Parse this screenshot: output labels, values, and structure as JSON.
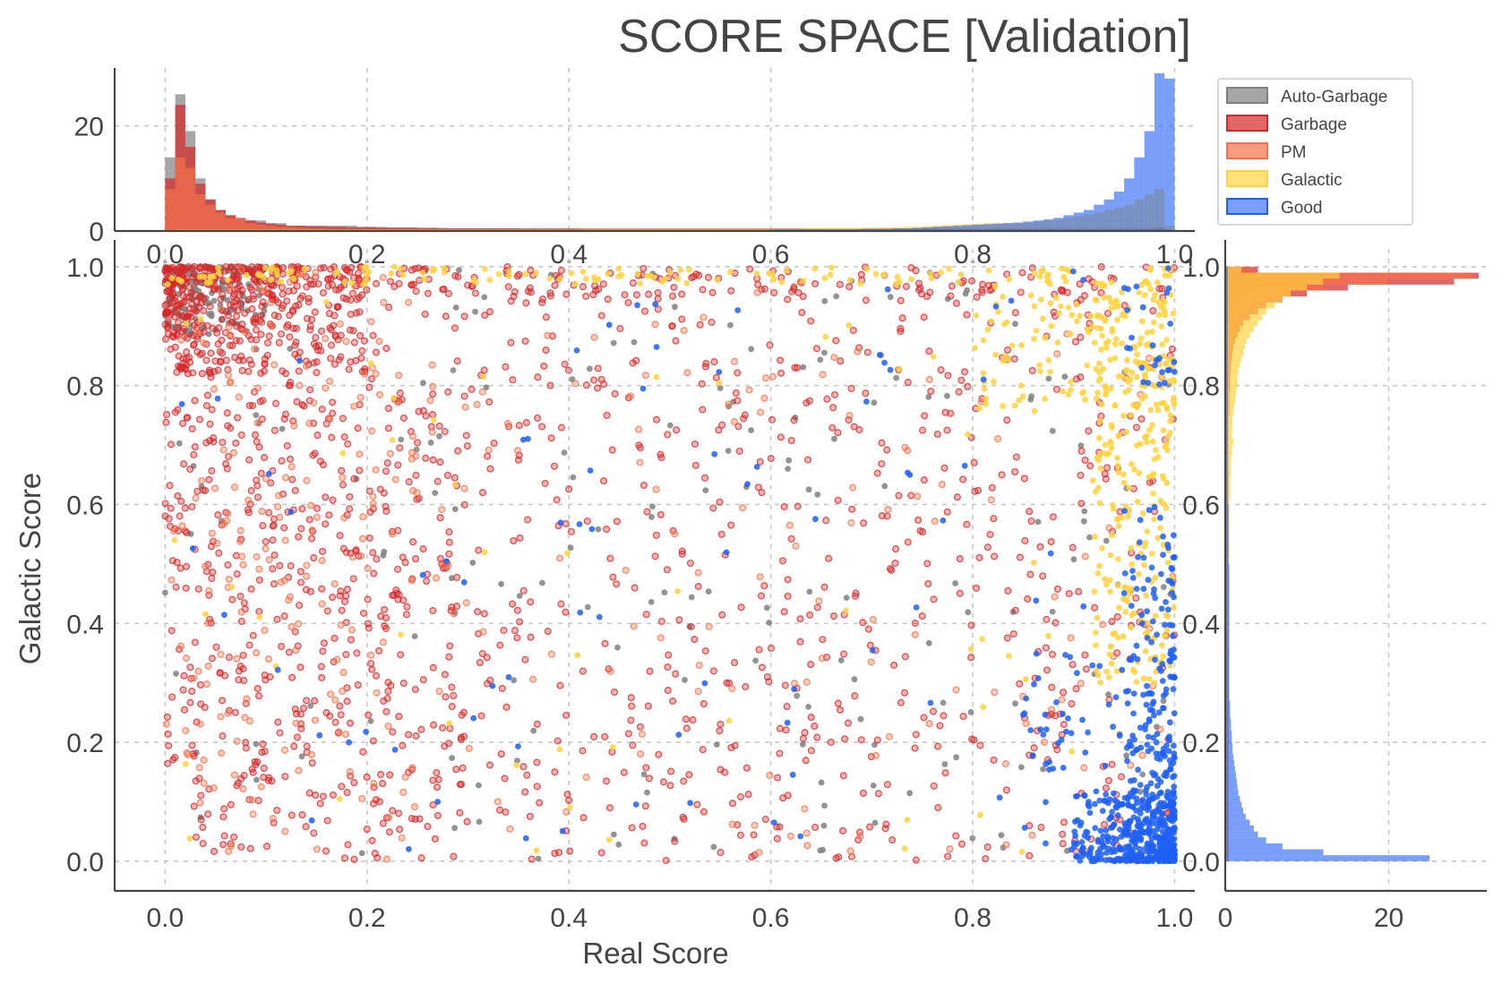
{
  "chart_data": {
    "type": "scatter",
    "title": "SCORE SPACE [Validation]",
    "xlabel": "Real Score",
    "ylabel": "Galactic Score",
    "xlim": [
      -0.05,
      1.02
    ],
    "ylim": [
      -0.05,
      1.03
    ],
    "x_ticks": [
      "0.0",
      "0.2",
      "0.4",
      "0.6",
      "0.8",
      "1.0"
    ],
    "y_ticks": [
      "0.0",
      "0.2",
      "0.4",
      "0.6",
      "0.8",
      "1.0"
    ],
    "top_hist_ticks": [
      "0",
      "20"
    ],
    "right_hist_ticks": [
      "0",
      "20"
    ],
    "top_hist_ylim": [
      0,
      31
    ],
    "right_hist_xlim": [
      0,
      32
    ],
    "grid": true,
    "legend_position": "top-right",
    "series": [
      {
        "name": "Auto-Garbage",
        "color": "#808080",
        "alpha": 0.7,
        "hist_real": [
          14,
          26,
          19,
          10,
          6,
          4,
          3,
          2,
          2,
          2,
          1.5,
          1.5,
          1,
          1,
          1,
          1,
          1,
          1,
          1,
          0.8,
          0.8,
          0.8,
          0.7,
          0.7,
          0.7,
          0.6,
          0.6,
          0.6,
          0.5,
          0.5,
          0.5,
          0.5,
          0.5,
          0.5,
          0.5,
          0.4,
          0.4,
          0.4,
          0.4,
          0.4,
          0.4,
          0.4,
          0.3,
          0.3,
          0.3,
          0.3,
          0.3,
          0.3,
          0.3,
          0.3,
          0.3,
          0.3,
          0.3,
          0.3,
          0.3,
          0.3,
          0.3,
          0.3,
          0.3,
          0.3,
          0.3,
          0.3,
          0.3,
          0.3,
          0.3,
          0.3,
          0.3,
          0.3,
          0.3,
          0.3,
          0.3,
          0.3,
          0.3,
          0.3,
          0.3,
          0.3,
          0.3,
          0.3,
          0.3,
          0.3,
          0.3,
          0.3,
          0.3,
          0.3,
          0.3,
          0.3,
          0.3,
          0.3,
          0.3,
          0.3,
          0.3,
          0.3,
          0.3,
          0.3,
          0.3,
          0.3,
          0.3,
          0.4,
          0.8,
          0.2
        ],
        "hist_galactic": [
          0.2,
          0.2,
          0.2,
          0.2,
          0.2,
          0.2,
          0.2,
          0.2,
          0.2,
          0.2,
          0.2,
          0.2,
          0.2,
          0.2,
          0.2,
          0.2,
          0.2,
          0.2,
          0.2,
          0.2,
          0.2,
          0.2,
          0.2,
          0.2,
          0.2,
          0.2,
          0.2,
          0.2,
          0.2,
          0.2,
          0.2,
          0.2,
          0.2,
          0.2,
          0.2,
          0.2,
          0.2,
          0.2,
          0.2,
          0.2,
          0.2,
          0.2,
          0.2,
          0.2,
          0.2,
          0.2,
          0.2,
          0.2,
          0.2,
          0.2,
          0.2,
          0.2,
          0.2,
          0.2,
          0.2,
          0.2,
          0.2,
          0.2,
          0.2,
          0.2,
          0.2,
          0.2,
          0.2,
          0.2,
          0.2,
          0.2,
          0.2,
          0.2,
          0.2,
          0.2,
          0.2,
          0.2,
          0.2,
          0.2,
          0.2,
          0.2,
          0.2,
          0.2,
          0.2,
          0.2,
          0.2,
          0.3,
          0.3,
          0.3,
          0.3,
          0.3,
          0.3,
          0.3,
          0.4,
          0.4,
          0.5,
          0.6,
          0.8,
          1.0,
          1.5,
          2.5,
          4,
          10,
          14,
          3
        ]
      },
      {
        "name": "Garbage",
        "color": "#d62728",
        "alpha": 0.7,
        "hist_real": [
          10,
          24,
          16,
          9,
          6,
          4,
          3,
          2.5,
          2,
          1.6,
          1.4,
          1.2,
          1,
          1,
          0.9,
          0.9,
          0.8,
          0.8,
          0.7,
          0.7,
          0.7,
          0.6,
          0.6,
          0.6,
          0.6,
          0.6,
          0.6,
          0.5,
          0.5,
          0.5,
          0.5,
          0.5,
          0.5,
          0.5,
          0.5,
          0.5,
          0.5,
          0.5,
          0.5,
          0.5,
          0.5,
          0.5,
          0.5,
          0.5,
          0.5,
          0.5,
          0.5,
          0.5,
          0.5,
          0.5,
          0.5,
          0.5,
          0.5,
          0.5,
          0.5,
          0.5,
          0.5,
          0.5,
          0.5,
          0.5,
          0.5,
          0.5,
          0.5,
          0.5,
          0.5,
          0.5,
          0.5,
          0.5,
          0.5,
          0.5,
          0.5,
          0.5,
          0.5,
          0.5,
          0.5,
          0.5,
          0.5,
          0.5,
          0.5,
          0.5,
          0.5,
          0.5,
          0.5,
          0.5,
          0.5,
          0.5,
          0.5,
          0.5,
          0.5,
          0.5,
          0.5,
          0.5,
          0.5,
          0.5,
          0.5,
          0.5,
          0.5,
          0.5,
          0.6,
          0.2
        ],
        "hist_galactic": [
          0.4,
          0.4,
          0.4,
          0.4,
          0.4,
          0.4,
          0.4,
          0.4,
          0.4,
          0.4,
          0.4,
          0.4,
          0.4,
          0.4,
          0.4,
          0.4,
          0.4,
          0.4,
          0.4,
          0.4,
          0.4,
          0.4,
          0.4,
          0.4,
          0.4,
          0.4,
          0.4,
          0.4,
          0.4,
          0.4,
          0.4,
          0.4,
          0.4,
          0.4,
          0.4,
          0.4,
          0.4,
          0.4,
          0.4,
          0.4,
          0.4,
          0.4,
          0.4,
          0.4,
          0.4,
          0.4,
          0.4,
          0.4,
          0.4,
          0.4,
          0.4,
          0.4,
          0.4,
          0.4,
          0.4,
          0.4,
          0.4,
          0.4,
          0.4,
          0.4,
          0.4,
          0.4,
          0.4,
          0.4,
          0.4,
          0.4,
          0.4,
          0.4,
          0.4,
          0.4,
          0.4,
          0.4,
          0.4,
          0.4,
          0.4,
          0.5,
          0.5,
          0.5,
          0.5,
          0.6,
          0.6,
          0.6,
          0.7,
          0.7,
          0.8,
          0.9,
          1.0,
          1.2,
          1.5,
          1.8,
          2.2,
          3,
          4,
          5,
          7,
          10,
          15,
          28,
          31,
          4
        ]
      },
      {
        "name": "PM",
        "color": "#f4704a",
        "alpha": 0.7,
        "hist_real": [
          8,
          14,
          12,
          7,
          5,
          3.5,
          2.5,
          2,
          1.5,
          1.2,
          1,
          0.8,
          0.7,
          0.6,
          0.5,
          0.5,
          0.4,
          0.4,
          0.4,
          0.4,
          0.3,
          0.3,
          0.3,
          0.3,
          0.3,
          0.3,
          0.3,
          0.3,
          0.3,
          0.3,
          0.3,
          0.3,
          0.3,
          0.3,
          0.3,
          0.3,
          0.3,
          0.3,
          0.3,
          0.3,
          0.3,
          0.3,
          0.3,
          0.3,
          0.3,
          0.3,
          0.3,
          0.3,
          0.3,
          0.3,
          0.3,
          0.3,
          0.3,
          0.3,
          0.3,
          0.3,
          0.3,
          0.3,
          0.3,
          0.3,
          0.3,
          0.3,
          0.3,
          0.3,
          0.3,
          0.3,
          0.3,
          0.3,
          0.3,
          0.3,
          0.3,
          0.3,
          0.3,
          0.3,
          0.3,
          0.3,
          0.3,
          0.3,
          0.3,
          0.3,
          0.3,
          0.3,
          0.3,
          0.3,
          0.3,
          0.3,
          0.3,
          0.3,
          0.3,
          0.3,
          0.3,
          0.3,
          0.3,
          0.3,
          0.3,
          0.3,
          0.3,
          0.3,
          0.3,
          0.1
        ],
        "hist_galactic": [
          0.2,
          0.2,
          0.2,
          0.2,
          0.2,
          0.2,
          0.2,
          0.2,
          0.2,
          0.2,
          0.2,
          0.2,
          0.2,
          0.2,
          0.2,
          0.2,
          0.2,
          0.2,
          0.2,
          0.2,
          0.2,
          0.2,
          0.2,
          0.2,
          0.2,
          0.2,
          0.2,
          0.2,
          0.2,
          0.2,
          0.2,
          0.2,
          0.2,
          0.2,
          0.2,
          0.2,
          0.2,
          0.2,
          0.2,
          0.2,
          0.2,
          0.2,
          0.2,
          0.2,
          0.2,
          0.2,
          0.2,
          0.2,
          0.2,
          0.2,
          0.3,
          0.3,
          0.3,
          0.3,
          0.3,
          0.3,
          0.3,
          0.3,
          0.3,
          0.3,
          0.3,
          0.3,
          0.3,
          0.3,
          0.3,
          0.3,
          0.3,
          0.3,
          0.3,
          0.3,
          0.3,
          0.3,
          0.3,
          0.3,
          0.3,
          0.3,
          0.3,
          0.3,
          0.3,
          0.3,
          0.4,
          0.4,
          0.4,
          0.5,
          0.5,
          0.6,
          0.7,
          0.8,
          1.0,
          1.2,
          1.5,
          2,
          2.5,
          3.5,
          5,
          7,
          12,
          20,
          30,
          3
        ]
      },
      {
        "name": "Galactic",
        "color": "#ffd23f",
        "alpha": 0.7,
        "hist_real": [
          0.2,
          0.3,
          0.3,
          0.3,
          0.3,
          0.3,
          0.3,
          0.3,
          0.3,
          0.3,
          0.3,
          0.3,
          0.3,
          0.3,
          0.3,
          0.3,
          0.3,
          0.3,
          0.3,
          0.3,
          0.3,
          0.3,
          0.3,
          0.3,
          0.3,
          0.3,
          0.3,
          0.3,
          0.3,
          0.3,
          0.3,
          0.3,
          0.3,
          0.3,
          0.3,
          0.3,
          0.3,
          0.3,
          0.3,
          0.3,
          0.3,
          0.4,
          0.4,
          0.4,
          0.4,
          0.4,
          0.4,
          0.4,
          0.4,
          0.4,
          0.4,
          0.4,
          0.4,
          0.4,
          0.4,
          0.4,
          0.4,
          0.4,
          0.4,
          0.4,
          0.4,
          0.4,
          0.4,
          0.5,
          0.5,
          0.5,
          0.5,
          0.5,
          0.5,
          0.6,
          0.6,
          0.7,
          0.7,
          0.8,
          0.8,
          0.9,
          1.0,
          1.1,
          1.2,
          1.3,
          1.4,
          1.5,
          1.5,
          1.5,
          1.6,
          1.6,
          1.8,
          2,
          2.2,
          2.5,
          2.8,
          3.2,
          3.5,
          4,
          4.5,
          5,
          6,
          7,
          8,
          1
        ],
        "hist_galactic": [
          0.3,
          0.3,
          0.3,
          0.3,
          0.3,
          0.3,
          0.3,
          0.3,
          0.3,
          0.3,
          0.3,
          0.3,
          0.3,
          0.3,
          0.3,
          0.3,
          0.3,
          0.3,
          0.3,
          0.3,
          0.3,
          0.3,
          0.3,
          0.3,
          0.3,
          0.3,
          0.3,
          0.3,
          0.3,
          0.3,
          0.3,
          0.3,
          0.3,
          0.3,
          0.3,
          0.3,
          0.4,
          0.4,
          0.4,
          0.4,
          0.4,
          0.4,
          0.4,
          0.4,
          0.4,
          0.4,
          0.4,
          0.4,
          0.4,
          0.4,
          0.4,
          0.5,
          0.5,
          0.5,
          0.5,
          0.5,
          0.5,
          0.5,
          0.5,
          0.5,
          0.5,
          0.6,
          0.6,
          0.6,
          0.6,
          0.7,
          0.7,
          0.7,
          0.8,
          0.8,
          1.0,
          0.8,
          0.8,
          0.9,
          0.9,
          1.0,
          1.1,
          1.2,
          1.3,
          1.4,
          1.5,
          1.5,
          1.6,
          1.8,
          2,
          2.2,
          2.4,
          2.6,
          3,
          3.5,
          4,
          4.5,
          5,
          6,
          7,
          8,
          10,
          12,
          14,
          2
        ]
      },
      {
        "name": "Good",
        "color": "#1f5ff5",
        "alpha": 0.6,
        "hist_real": [
          0.1,
          0.1,
          0.1,
          0.1,
          0.1,
          0.1,
          0.1,
          0.1,
          0.1,
          0.1,
          0.1,
          0.1,
          0.1,
          0.1,
          0.1,
          0.1,
          0.1,
          0.1,
          0.1,
          0.1,
          0.1,
          0.1,
          0.1,
          0.1,
          0.1,
          0.1,
          0.1,
          0.1,
          0.1,
          0.1,
          0.1,
          0.1,
          0.1,
          0.1,
          0.1,
          0.1,
          0.1,
          0.1,
          0.1,
          0.1,
          0.2,
          0.2,
          0.2,
          0.2,
          0.2,
          0.2,
          0.2,
          0.2,
          0.2,
          0.2,
          0.2,
          0.2,
          0.2,
          0.2,
          0.2,
          0.2,
          0.2,
          0.2,
          0.2,
          0.2,
          0.3,
          0.3,
          0.3,
          0.3,
          0.3,
          0.3,
          0.3,
          0.3,
          0.3,
          0.4,
          0.4,
          0.4,
          0.5,
          0.5,
          0.6,
          0.7,
          0.8,
          0.9,
          1.0,
          1.1,
          1.2,
          1.3,
          1.4,
          1.5,
          1.6,
          1.8,
          2.0,
          2.2,
          2.5,
          3,
          3.5,
          4,
          5,
          6,
          7.5,
          10,
          14,
          19,
          30,
          29
        ],
        "hist_galactic": [
          25,
          12,
          7,
          5,
          4,
          3.5,
          3,
          2.5,
          2.2,
          2,
          1.8,
          1.6,
          1.5,
          1.4,
          1.3,
          1.2,
          1.1,
          1.0,
          0.9,
          0.9,
          0.8,
          0.8,
          0.7,
          0.7,
          0.6,
          0.6,
          0.6,
          0.5,
          0.5,
          0.5,
          0.5,
          0.5,
          0.5,
          0.5,
          0.5,
          0.5,
          0.5,
          0.5,
          0.5,
          0.5,
          0.5,
          0.5,
          0.5,
          0.5,
          0.5,
          0.5,
          0.5,
          0.5,
          0.5,
          0.5,
          0.4,
          0.4,
          0.4,
          0.4,
          0.4,
          0.4,
          0.4,
          0.4,
          0.4,
          0.4,
          0.3,
          0.3,
          0.3,
          0.3,
          0.3,
          0.3,
          0.3,
          0.3,
          0.3,
          0.3,
          0.3,
          0.3,
          0.3,
          0.3,
          0.3,
          0.3,
          0.3,
          0.3,
          0.3,
          0.3,
          0.3,
          0.3,
          0.3,
          0.3,
          0.3,
          0.3,
          0.3,
          0.3,
          0.3,
          0.3,
          0.3,
          0.3,
          0.3,
          0.3,
          0.3,
          0.3,
          0.3,
          0.3,
          0.3,
          0.3
        ]
      }
    ],
    "scatter_clusters": [
      {
        "series": "Auto-Garbage",
        "n": 160,
        "x": [
          0.0,
          0.1
        ],
        "y": [
          0.88,
          1.0
        ]
      },
      {
        "series": "Auto-Garbage",
        "n": 180,
        "x": [
          0.0,
          1.0
        ],
        "y": [
          0.0,
          1.0
        ]
      },
      {
        "series": "Garbage",
        "n": 420,
        "x": [
          0.0,
          0.2
        ],
        "y": [
          0.82,
          1.0
        ]
      },
      {
        "series": "Garbage",
        "n": 160,
        "x": [
          0.0,
          1.0
        ],
        "y": [
          0.95,
          1.0
        ]
      },
      {
        "series": "Garbage",
        "n": 300,
        "x": [
          0.0,
          0.3
        ],
        "y": [
          0.0,
          0.8
        ]
      },
      {
        "series": "Garbage",
        "n": 900,
        "x": [
          0.0,
          1.0
        ],
        "y": [
          0.0,
          1.0
        ]
      },
      {
        "series": "PM",
        "n": 150,
        "x": [
          0.0,
          0.25
        ],
        "y": [
          0.0,
          1.0
        ]
      },
      {
        "series": "PM",
        "n": 180,
        "x": [
          0.0,
          1.0
        ],
        "y": [
          0.0,
          1.0
        ]
      },
      {
        "series": "Galactic",
        "n": 70,
        "x": [
          0.0,
          0.45
        ],
        "y": [
          0.97,
          1.0
        ]
      },
      {
        "series": "Galactic",
        "n": 50,
        "x": [
          0.45,
          0.9
        ],
        "y": [
          0.97,
          1.0
        ]
      },
      {
        "series": "Galactic",
        "n": 260,
        "x": [
          0.92,
          1.0
        ],
        "y": [
          0.3,
          1.0
        ]
      },
      {
        "series": "Galactic",
        "n": 130,
        "x": [
          0.8,
          1.0
        ],
        "y": [
          0.75,
          1.0
        ]
      },
      {
        "series": "Galactic",
        "n": 60,
        "x": [
          0.0,
          1.0
        ],
        "y": [
          0.0,
          1.0
        ]
      },
      {
        "series": "Good",
        "n": 320,
        "x": [
          0.9,
          1.0
        ],
        "y": [
          0.0,
          0.12
        ]
      },
      {
        "series": "Good",
        "n": 240,
        "x": [
          0.95,
          1.0
        ],
        "y": [
          0.0,
          0.6
        ]
      },
      {
        "series": "Good",
        "n": 90,
        "x": [
          0.85,
          1.0
        ],
        "y": [
          0.0,
          0.35
        ]
      },
      {
        "series": "Good",
        "n": 25,
        "x": [
          0.95,
          1.0
        ],
        "y": [
          0.8,
          1.0
        ]
      },
      {
        "series": "Good",
        "n": 80,
        "x": [
          0.0,
          1.0
        ],
        "y": [
          0.0,
          1.0
        ]
      }
    ]
  }
}
